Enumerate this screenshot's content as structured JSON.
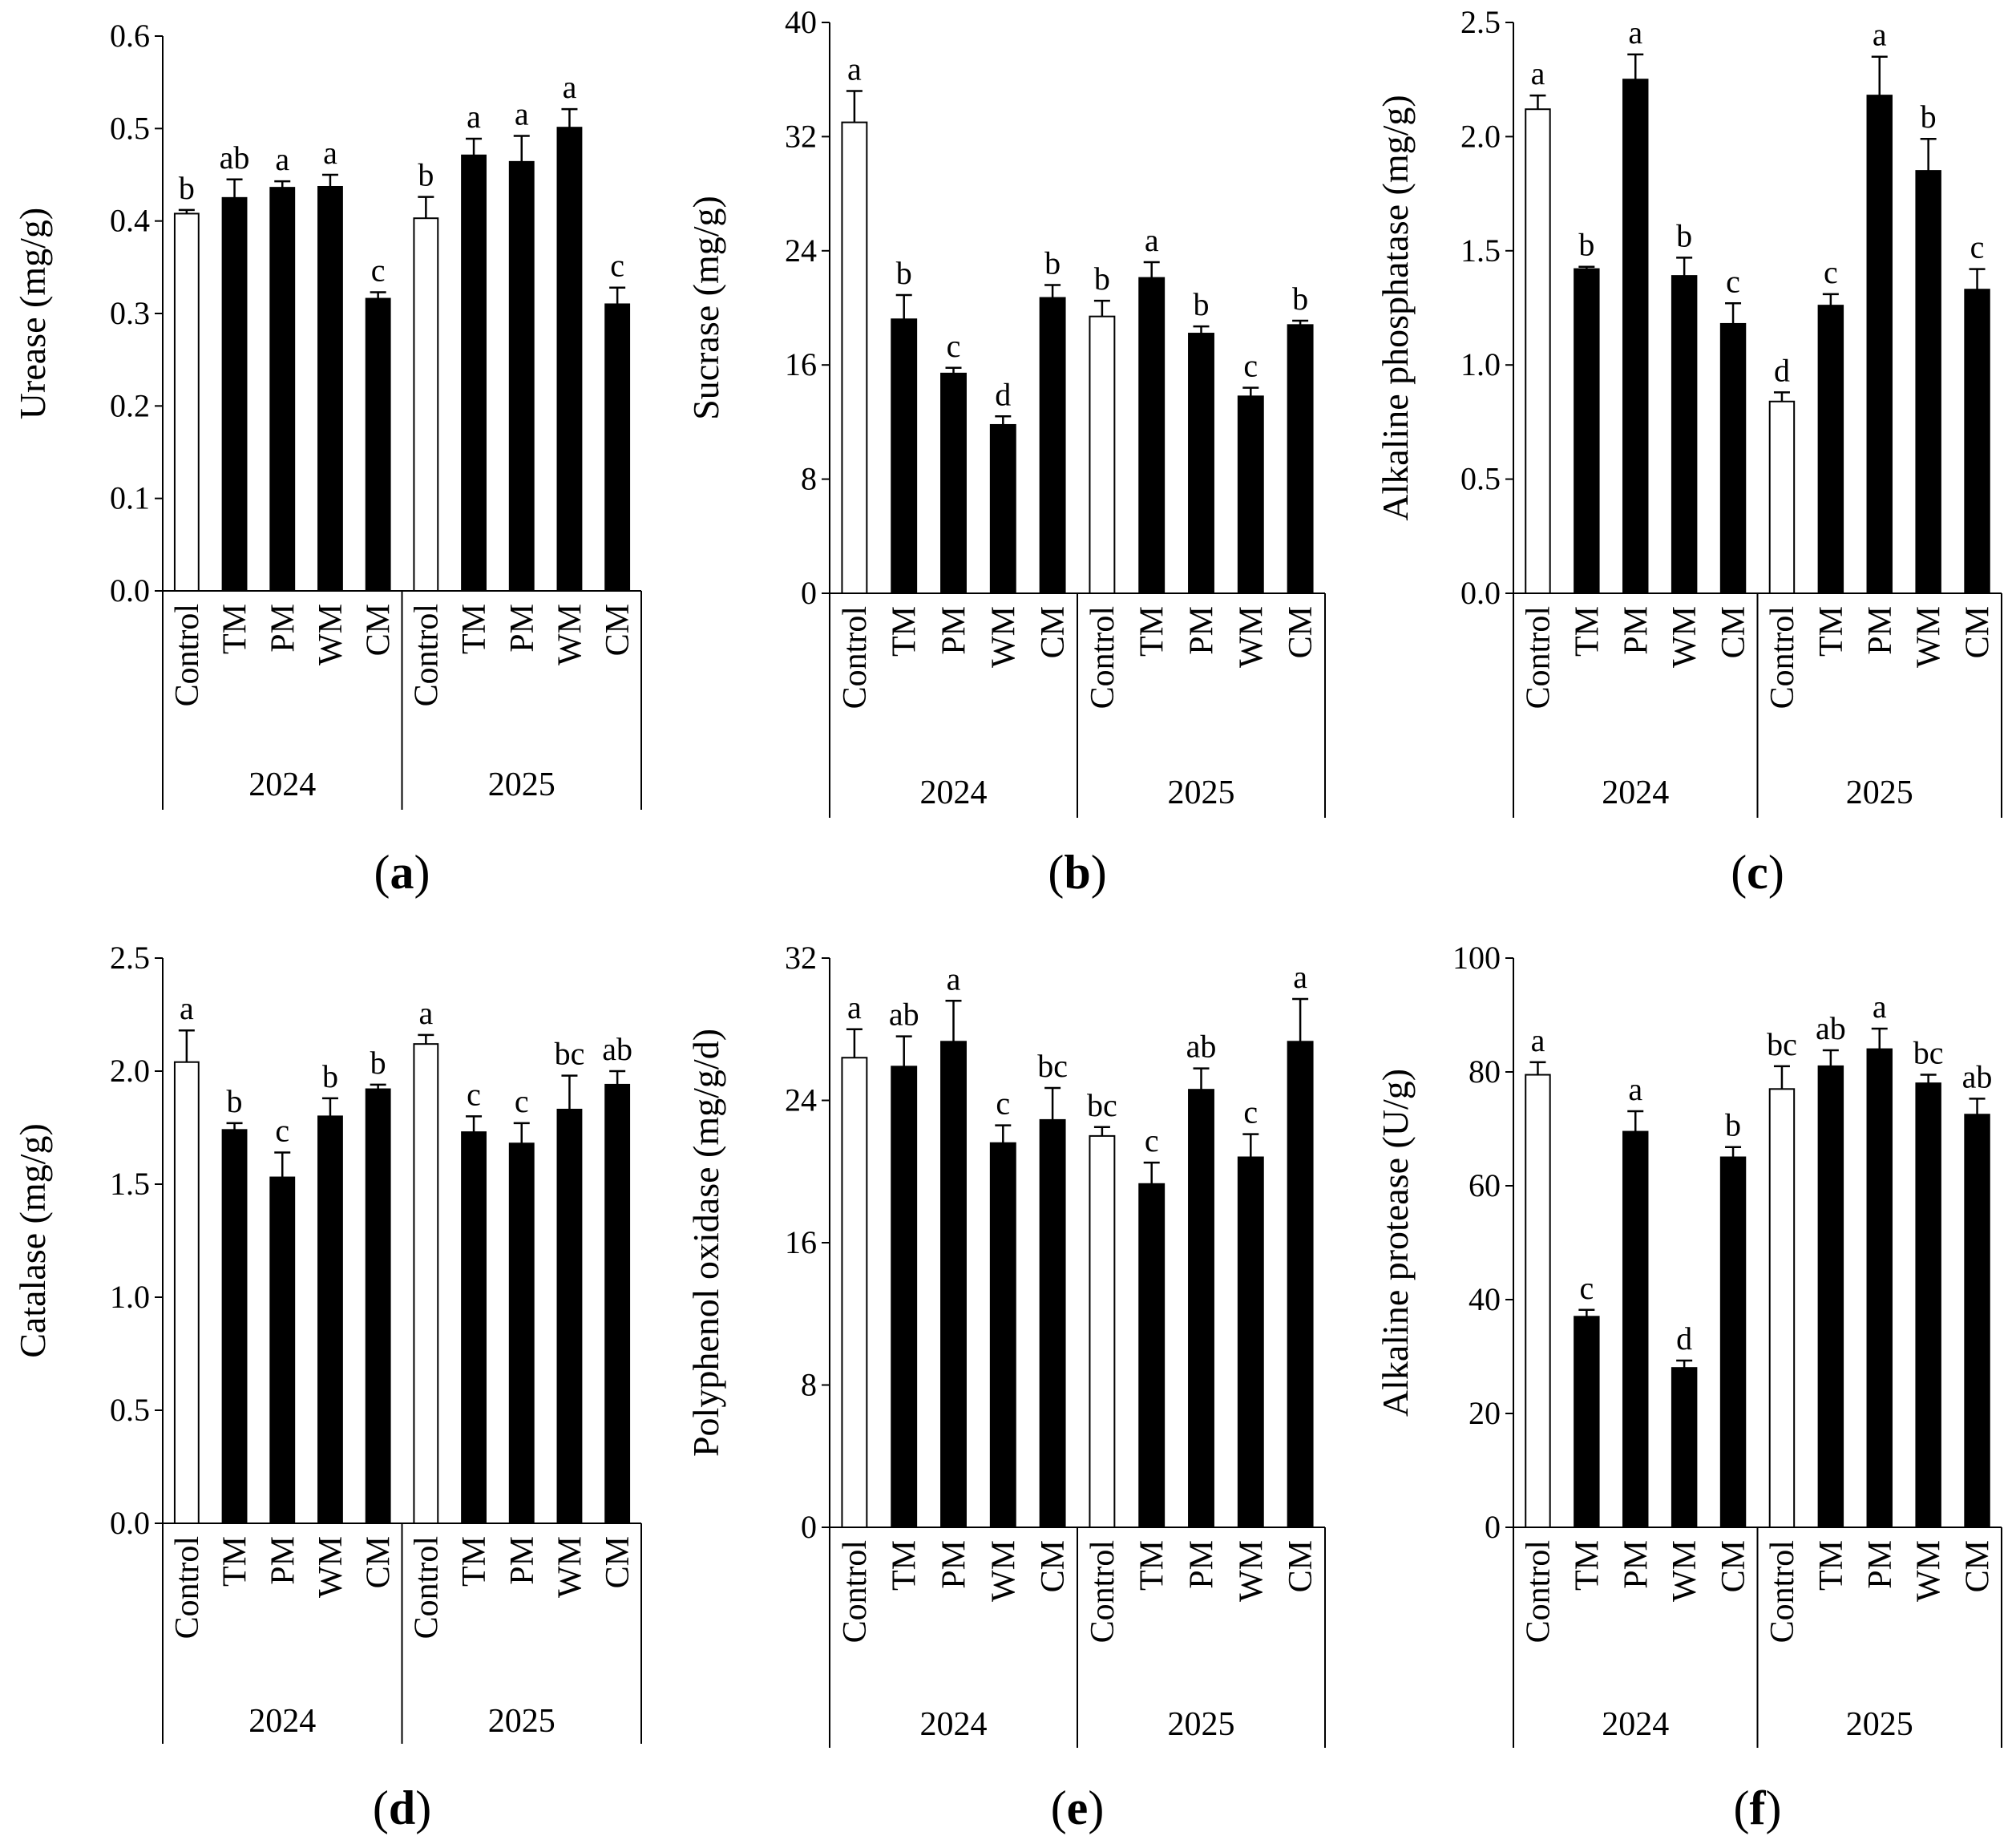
{
  "colors": {
    "control_fill": "#ffffff",
    "treatment_fill": "#000000",
    "stroke": "#000000"
  },
  "chart_data": [
    {
      "id": "a",
      "type": "bar",
      "panel_label": "a",
      "ylabel": "Urease (mg/g)",
      "yticks": [
        "0.0",
        "0.1",
        "0.2",
        "0.3",
        "0.4",
        "0.5",
        "0.6"
      ],
      "ylim": [
        0,
        0.6
      ],
      "groups": [
        {
          "year": "2024",
          "bars": [
            {
              "category": "Control",
              "value": 0.408,
              "error": 0.004,
              "letter": "b",
              "filled": false
            },
            {
              "category": "TM",
              "value": 0.425,
              "error": 0.02,
              "letter": "ab",
              "filled": true
            },
            {
              "category": "PM",
              "value": 0.436,
              "error": 0.007,
              "letter": "a",
              "filled": true
            },
            {
              "category": "WM",
              "value": 0.437,
              "error": 0.013,
              "letter": "a",
              "filled": true
            },
            {
              "category": "CM",
              "value": 0.316,
              "error": 0.007,
              "letter": "c",
              "filled": true
            }
          ]
        },
        {
          "year": "2025",
          "bars": [
            {
              "category": "Control",
              "value": 0.403,
              "error": 0.023,
              "letter": "b",
              "filled": false
            },
            {
              "category": "TM",
              "value": 0.471,
              "error": 0.018,
              "letter": "a",
              "filled": true
            },
            {
              "category": "PM",
              "value": 0.464,
              "error": 0.028,
              "letter": "a",
              "filled": true
            },
            {
              "category": "WM",
              "value": 0.501,
              "error": 0.02,
              "letter": "a",
              "filled": true
            },
            {
              "category": "CM",
              "value": 0.31,
              "error": 0.018,
              "letter": "c",
              "filled": true
            }
          ]
        }
      ]
    },
    {
      "id": "b",
      "type": "bar",
      "panel_label": "b",
      "ylabel": "Sucrase (mg/g)",
      "yticks": [
        "0",
        "8",
        "16",
        "24",
        "32",
        "40"
      ],
      "ylim": [
        0,
        40
      ],
      "groups": [
        {
          "year": "2024",
          "bars": [
            {
              "category": "Control",
              "value": 33.0,
              "error": 2.2,
              "letter": "a",
              "filled": false
            },
            {
              "category": "TM",
              "value": 19.2,
              "error": 1.7,
              "letter": "b",
              "filled": true
            },
            {
              "category": "PM",
              "value": 15.4,
              "error": 0.4,
              "letter": "c",
              "filled": true
            },
            {
              "category": "WM",
              "value": 11.8,
              "error": 0.6,
              "letter": "d",
              "filled": true
            },
            {
              "category": "CM",
              "value": 20.7,
              "error": 0.9,
              "letter": "b",
              "filled": true
            }
          ]
        },
        {
          "year": "2025",
          "bars": [
            {
              "category": "Control",
              "value": 19.4,
              "error": 1.1,
              "letter": "b",
              "filled": false
            },
            {
              "category": "TM",
              "value": 22.1,
              "error": 1.1,
              "letter": "a",
              "filled": true
            },
            {
              "category": "PM",
              "value": 18.2,
              "error": 0.5,
              "letter": "b",
              "filled": true
            },
            {
              "category": "WM",
              "value": 13.8,
              "error": 0.6,
              "letter": "c",
              "filled": true
            },
            {
              "category": "CM",
              "value": 18.8,
              "error": 0.3,
              "letter": "b",
              "filled": true
            }
          ]
        }
      ]
    },
    {
      "id": "c",
      "type": "bar",
      "panel_label": "c",
      "ylabel": "Alkaline phosphatase (mg/g)",
      "yticks": [
        "0.0",
        "0.5",
        "1.0",
        "1.5",
        "2.0",
        "2.5"
      ],
      "ylim": [
        0,
        2.5
      ],
      "groups": [
        {
          "year": "2024",
          "bars": [
            {
              "category": "Control",
              "value": 2.12,
              "error": 0.06,
              "letter": "a",
              "filled": false
            },
            {
              "category": "TM",
              "value": 1.42,
              "error": 0.01,
              "letter": "b",
              "filled": true
            },
            {
              "category": "PM",
              "value": 2.25,
              "error": 0.11,
              "letter": "a",
              "filled": true
            },
            {
              "category": "WM",
              "value": 1.39,
              "error": 0.08,
              "letter": "b",
              "filled": true
            },
            {
              "category": "CM",
              "value": 1.18,
              "error": 0.09,
              "letter": "c",
              "filled": true
            }
          ]
        },
        {
          "year": "2025",
          "bars": [
            {
              "category": "Control",
              "value": 0.84,
              "error": 0.04,
              "letter": "d",
              "filled": false
            },
            {
              "category": "TM",
              "value": 1.26,
              "error": 0.05,
              "letter": "c",
              "filled": true
            },
            {
              "category": "PM",
              "value": 2.18,
              "error": 0.17,
              "letter": "a",
              "filled": true
            },
            {
              "category": "WM",
              "value": 1.85,
              "error": 0.14,
              "letter": "b",
              "filled": true
            },
            {
              "category": "CM",
              "value": 1.33,
              "error": 0.09,
              "letter": "c",
              "filled": true
            }
          ]
        }
      ]
    },
    {
      "id": "d",
      "type": "bar",
      "panel_label": "d",
      "ylabel": "Catalase (mg/g)",
      "yticks": [
        "0.0",
        "0.5",
        "1.0",
        "1.5",
        "2.0",
        "2.5"
      ],
      "ylim": [
        0,
        2.5
      ],
      "groups": [
        {
          "year": "2024",
          "bars": [
            {
              "category": "Control",
              "value": 2.04,
              "error": 0.14,
              "letter": "a",
              "filled": false
            },
            {
              "category": "TM",
              "value": 1.74,
              "error": 0.03,
              "letter": "b",
              "filled": true
            },
            {
              "category": "PM",
              "value": 1.53,
              "error": 0.11,
              "letter": "c",
              "filled": true
            },
            {
              "category": "WM",
              "value": 1.8,
              "error": 0.08,
              "letter": "b",
              "filled": true
            },
            {
              "category": "CM",
              "value": 1.92,
              "error": 0.02,
              "letter": "b",
              "filled": true
            }
          ]
        },
        {
          "year": "2025",
          "bars": [
            {
              "category": "Control",
              "value": 2.12,
              "error": 0.04,
              "letter": "a",
              "filled": false
            },
            {
              "category": "TM",
              "value": 1.73,
              "error": 0.07,
              "letter": "c",
              "filled": true
            },
            {
              "category": "PM",
              "value": 1.68,
              "error": 0.09,
              "letter": "c",
              "filled": true
            },
            {
              "category": "WM",
              "value": 1.83,
              "error": 0.15,
              "letter": "bc",
              "filled": true
            },
            {
              "category": "CM",
              "value": 1.94,
              "error": 0.06,
              "letter": "ab",
              "filled": true
            }
          ]
        }
      ]
    },
    {
      "id": "e",
      "type": "bar",
      "panel_label": "e",
      "ylabel": "Polyphenol oxidase (mg/g/d)",
      "yticks": [
        "0",
        "8",
        "16",
        "24",
        "32"
      ],
      "ylim": [
        0,
        32
      ],
      "groups": [
        {
          "year": "2024",
          "bars": [
            {
              "category": "Control",
              "value": 26.4,
              "error": 1.6,
              "letter": "a",
              "filled": false
            },
            {
              "category": "TM",
              "value": 25.9,
              "error": 1.7,
              "letter": "ab",
              "filled": true
            },
            {
              "category": "PM",
              "value": 27.3,
              "error": 2.3,
              "letter": "a",
              "filled": true
            },
            {
              "category": "WM",
              "value": 21.6,
              "error": 1.0,
              "letter": "c",
              "filled": true
            },
            {
              "category": "CM",
              "value": 22.9,
              "error": 1.8,
              "letter": "bc",
              "filled": true
            }
          ]
        },
        {
          "year": "2025",
          "bars": [
            {
              "category": "Control",
              "value": 22.0,
              "error": 0.5,
              "letter": "bc",
              "filled": false
            },
            {
              "category": "TM",
              "value": 19.3,
              "error": 1.2,
              "letter": "c",
              "filled": true
            },
            {
              "category": "PM",
              "value": 24.6,
              "error": 1.2,
              "letter": "ab",
              "filled": true
            },
            {
              "category": "WM",
              "value": 20.8,
              "error": 1.3,
              "letter": "c",
              "filled": true
            },
            {
              "category": "CM",
              "value": 27.3,
              "error": 2.4,
              "letter": "a",
              "filled": true
            }
          ]
        }
      ]
    },
    {
      "id": "f",
      "type": "bar",
      "panel_label": "f",
      "ylabel": "Alkaline protease (U/g)",
      "yticks": [
        "0",
        "20",
        "40",
        "60",
        "80",
        "100"
      ],
      "ylim": [
        0,
        100
      ],
      "groups": [
        {
          "year": "2024",
          "bars": [
            {
              "category": "Control",
              "value": 79.5,
              "error": 2.2,
              "letter": "a",
              "filled": false
            },
            {
              "category": "TM",
              "value": 37.0,
              "error": 1.2,
              "letter": "c",
              "filled": true
            },
            {
              "category": "PM",
              "value": 69.5,
              "error": 3.6,
              "letter": "a",
              "filled": true
            },
            {
              "category": "WM",
              "value": 28.0,
              "error": 1.3,
              "letter": "d",
              "filled": true
            },
            {
              "category": "CM",
              "value": 65.0,
              "error": 1.8,
              "letter": "b",
              "filled": true
            }
          ]
        },
        {
          "year": "2025",
          "bars": [
            {
              "category": "Control",
              "value": 77.0,
              "error": 4.0,
              "letter": "bc",
              "filled": false
            },
            {
              "category": "TM",
              "value": 81.0,
              "error": 2.8,
              "letter": "ab",
              "filled": true
            },
            {
              "category": "PM",
              "value": 84.0,
              "error": 3.6,
              "letter": "a",
              "filled": true
            },
            {
              "category": "WM",
              "value": 78.0,
              "error": 1.5,
              "letter": "bc",
              "filled": true
            },
            {
              "category": "CM",
              "value": 72.5,
              "error": 2.8,
              "letter": "ab",
              "filled": true
            }
          ]
        }
      ]
    }
  ]
}
